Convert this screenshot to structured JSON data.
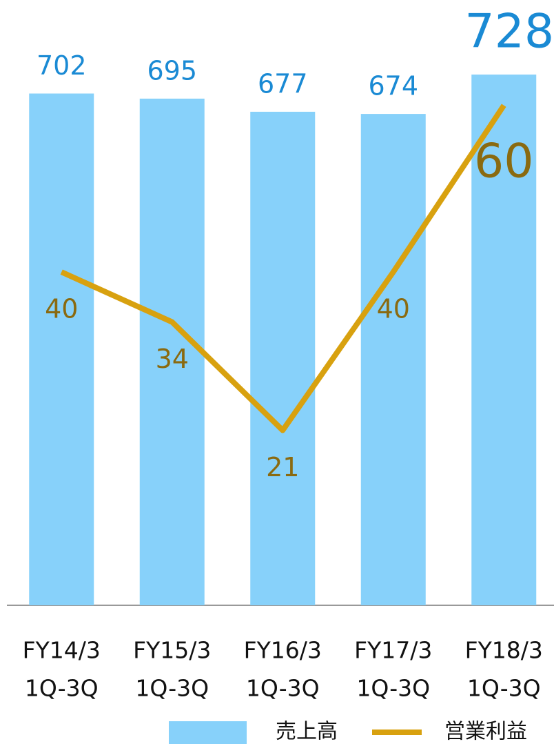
{
  "chart_data": {
    "type": "bar",
    "categories": [
      [
        "FY14/3",
        "1Q-3Q"
      ],
      [
        "FY15/3",
        "1Q-3Q"
      ],
      [
        "FY16/3",
        "1Q-3Q"
      ],
      [
        "FY17/3",
        "1Q-3Q"
      ],
      [
        "FY18/3",
        "1Q-3Q"
      ]
    ],
    "series": [
      {
        "name": "売上高",
        "type": "bar",
        "color": "#87d1fa",
        "values": [
          702,
          695,
          677,
          674,
          728
        ]
      },
      {
        "name": "営業利益",
        "type": "line",
        "color": "#d8a10f",
        "axis": "y2",
        "values": [
          40,
          34,
          21,
          40,
          60
        ]
      }
    ],
    "ylim": [
      0,
      800
    ],
    "y2lim": [
      0,
      70
    ]
  }
}
